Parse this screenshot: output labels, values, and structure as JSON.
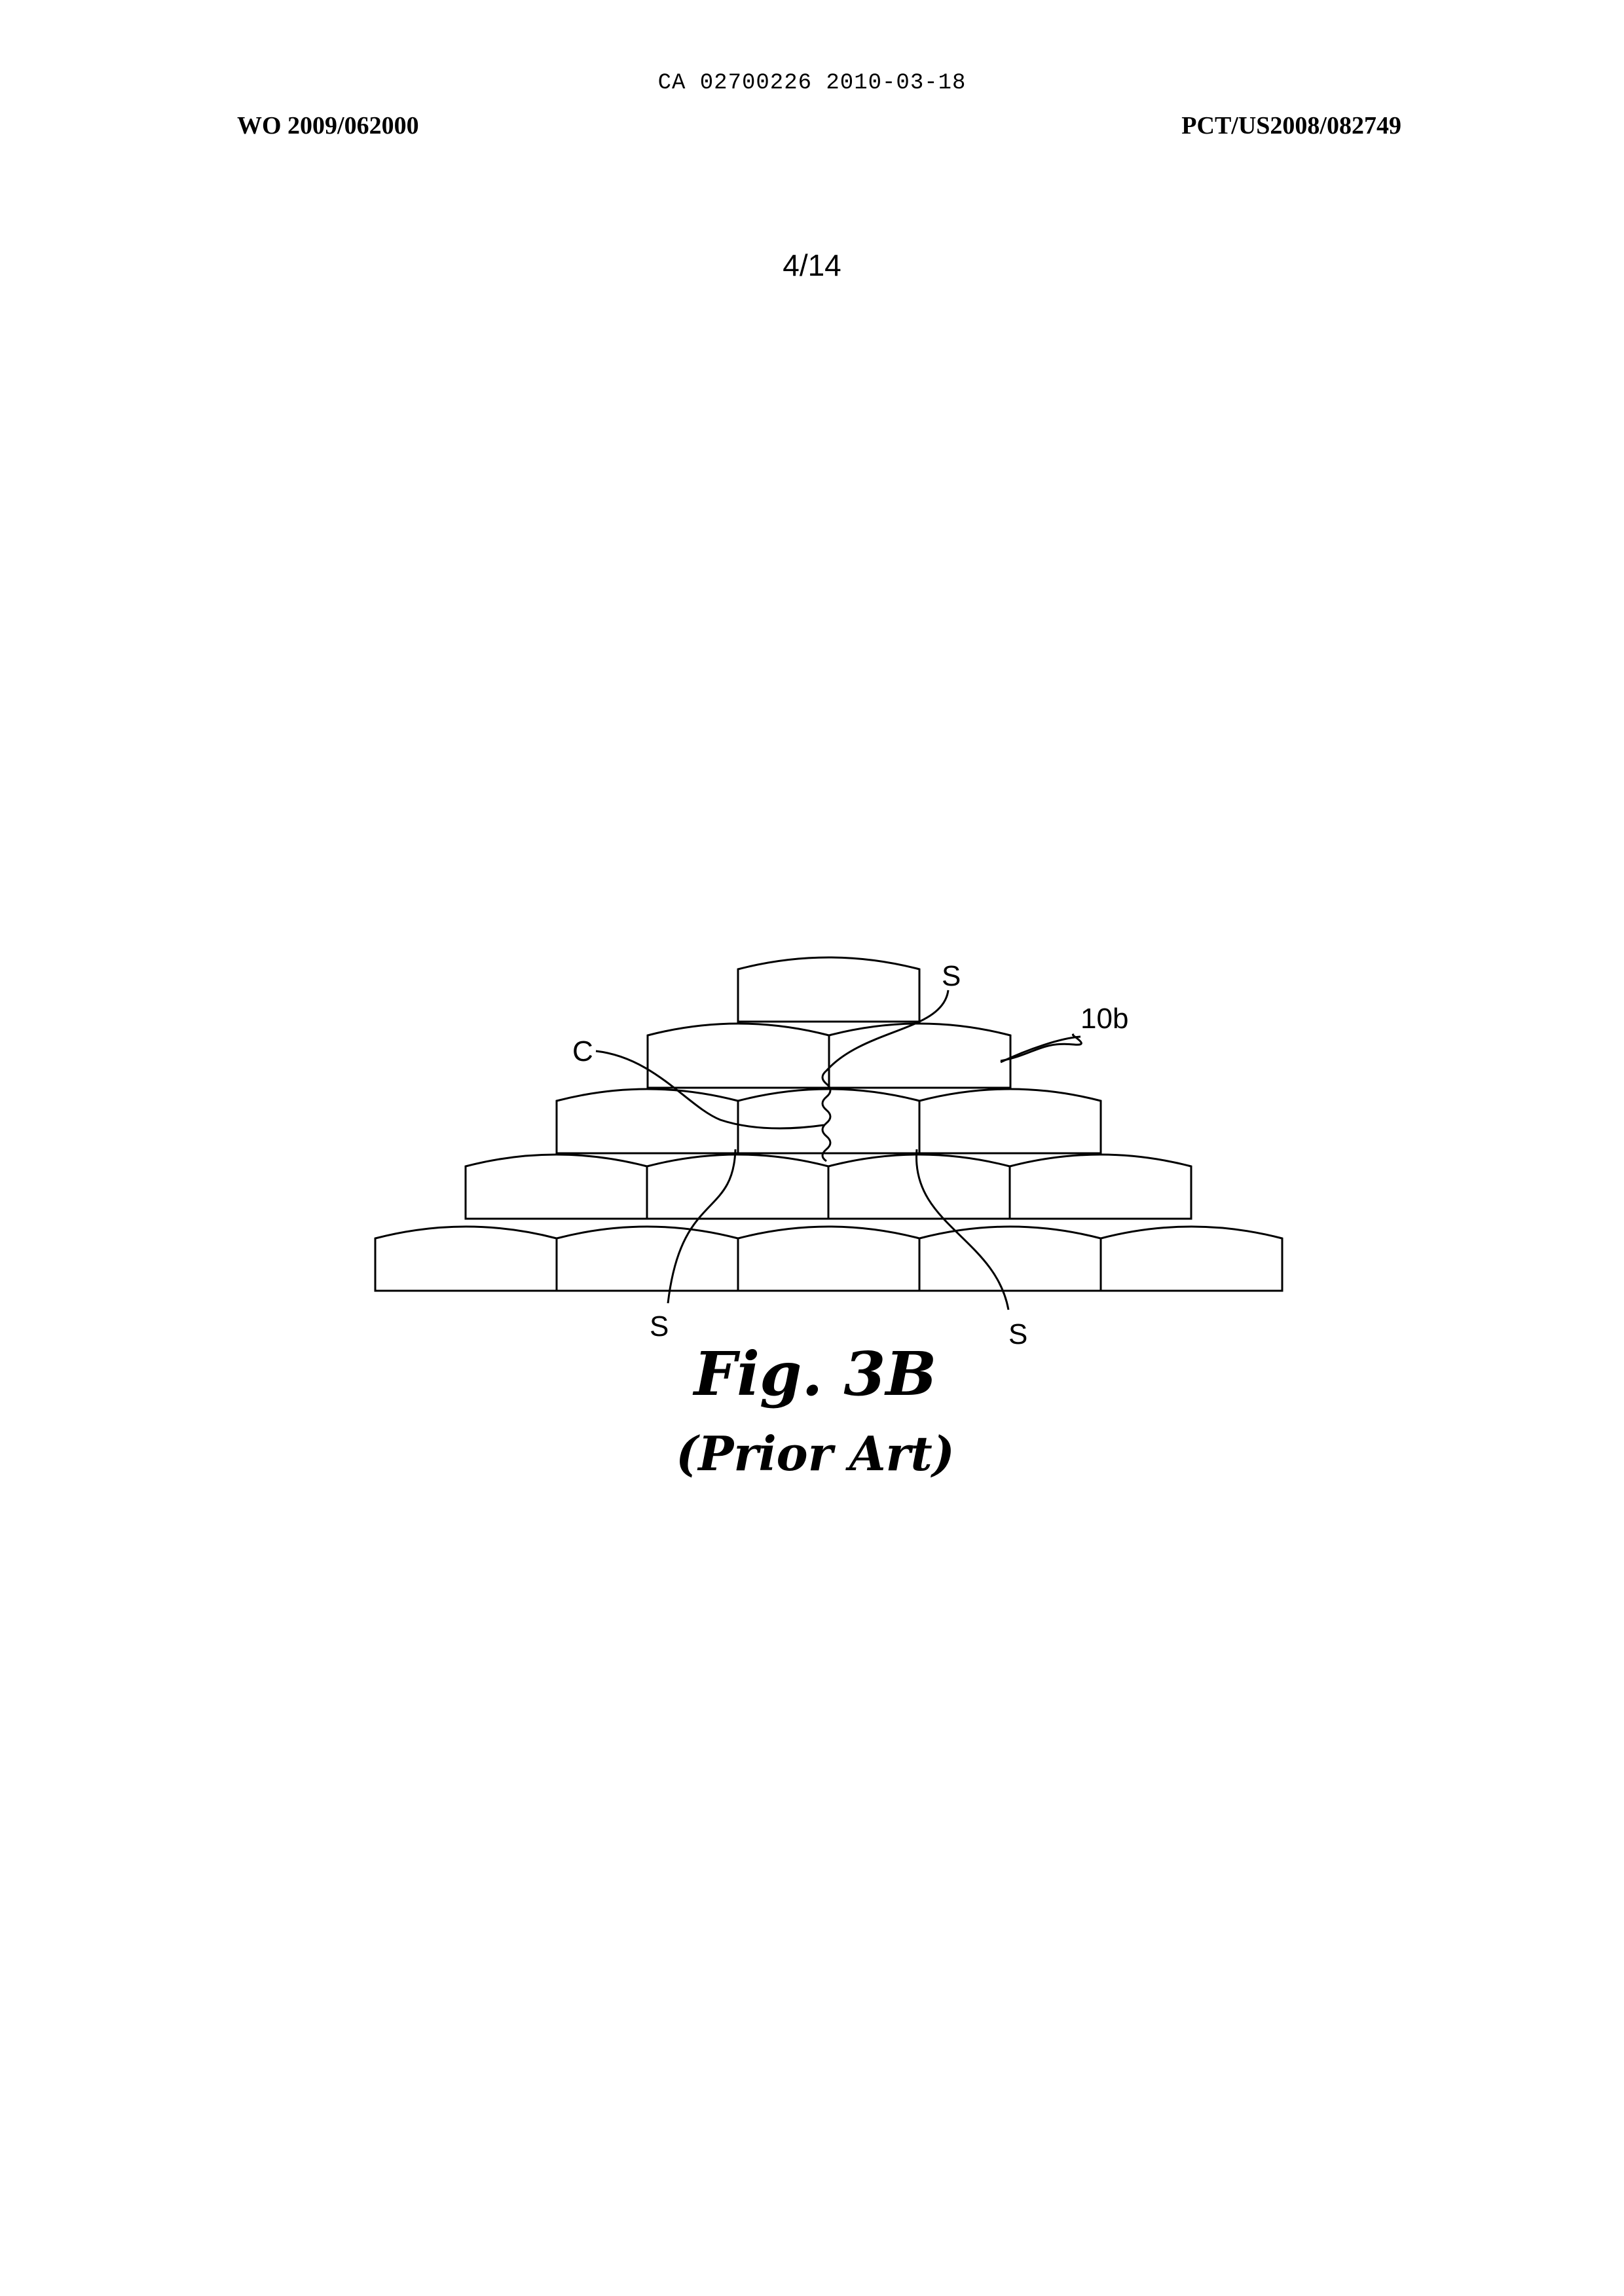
{
  "header": {
    "ca_line": "CA 02700226 2010-03-18",
    "wo_number": "WO 2009/062000",
    "pct_number": "PCT/US2008/082749",
    "sheet_number": "4/14"
  },
  "figure": {
    "labels": {
      "s_top": "S",
      "c": "C",
      "ref_10b": "10b",
      "s_bottom_left": "S",
      "s_bottom_right": "S"
    },
    "caption": "Fig. 3B",
    "subcaption": "(Prior Art)"
  }
}
